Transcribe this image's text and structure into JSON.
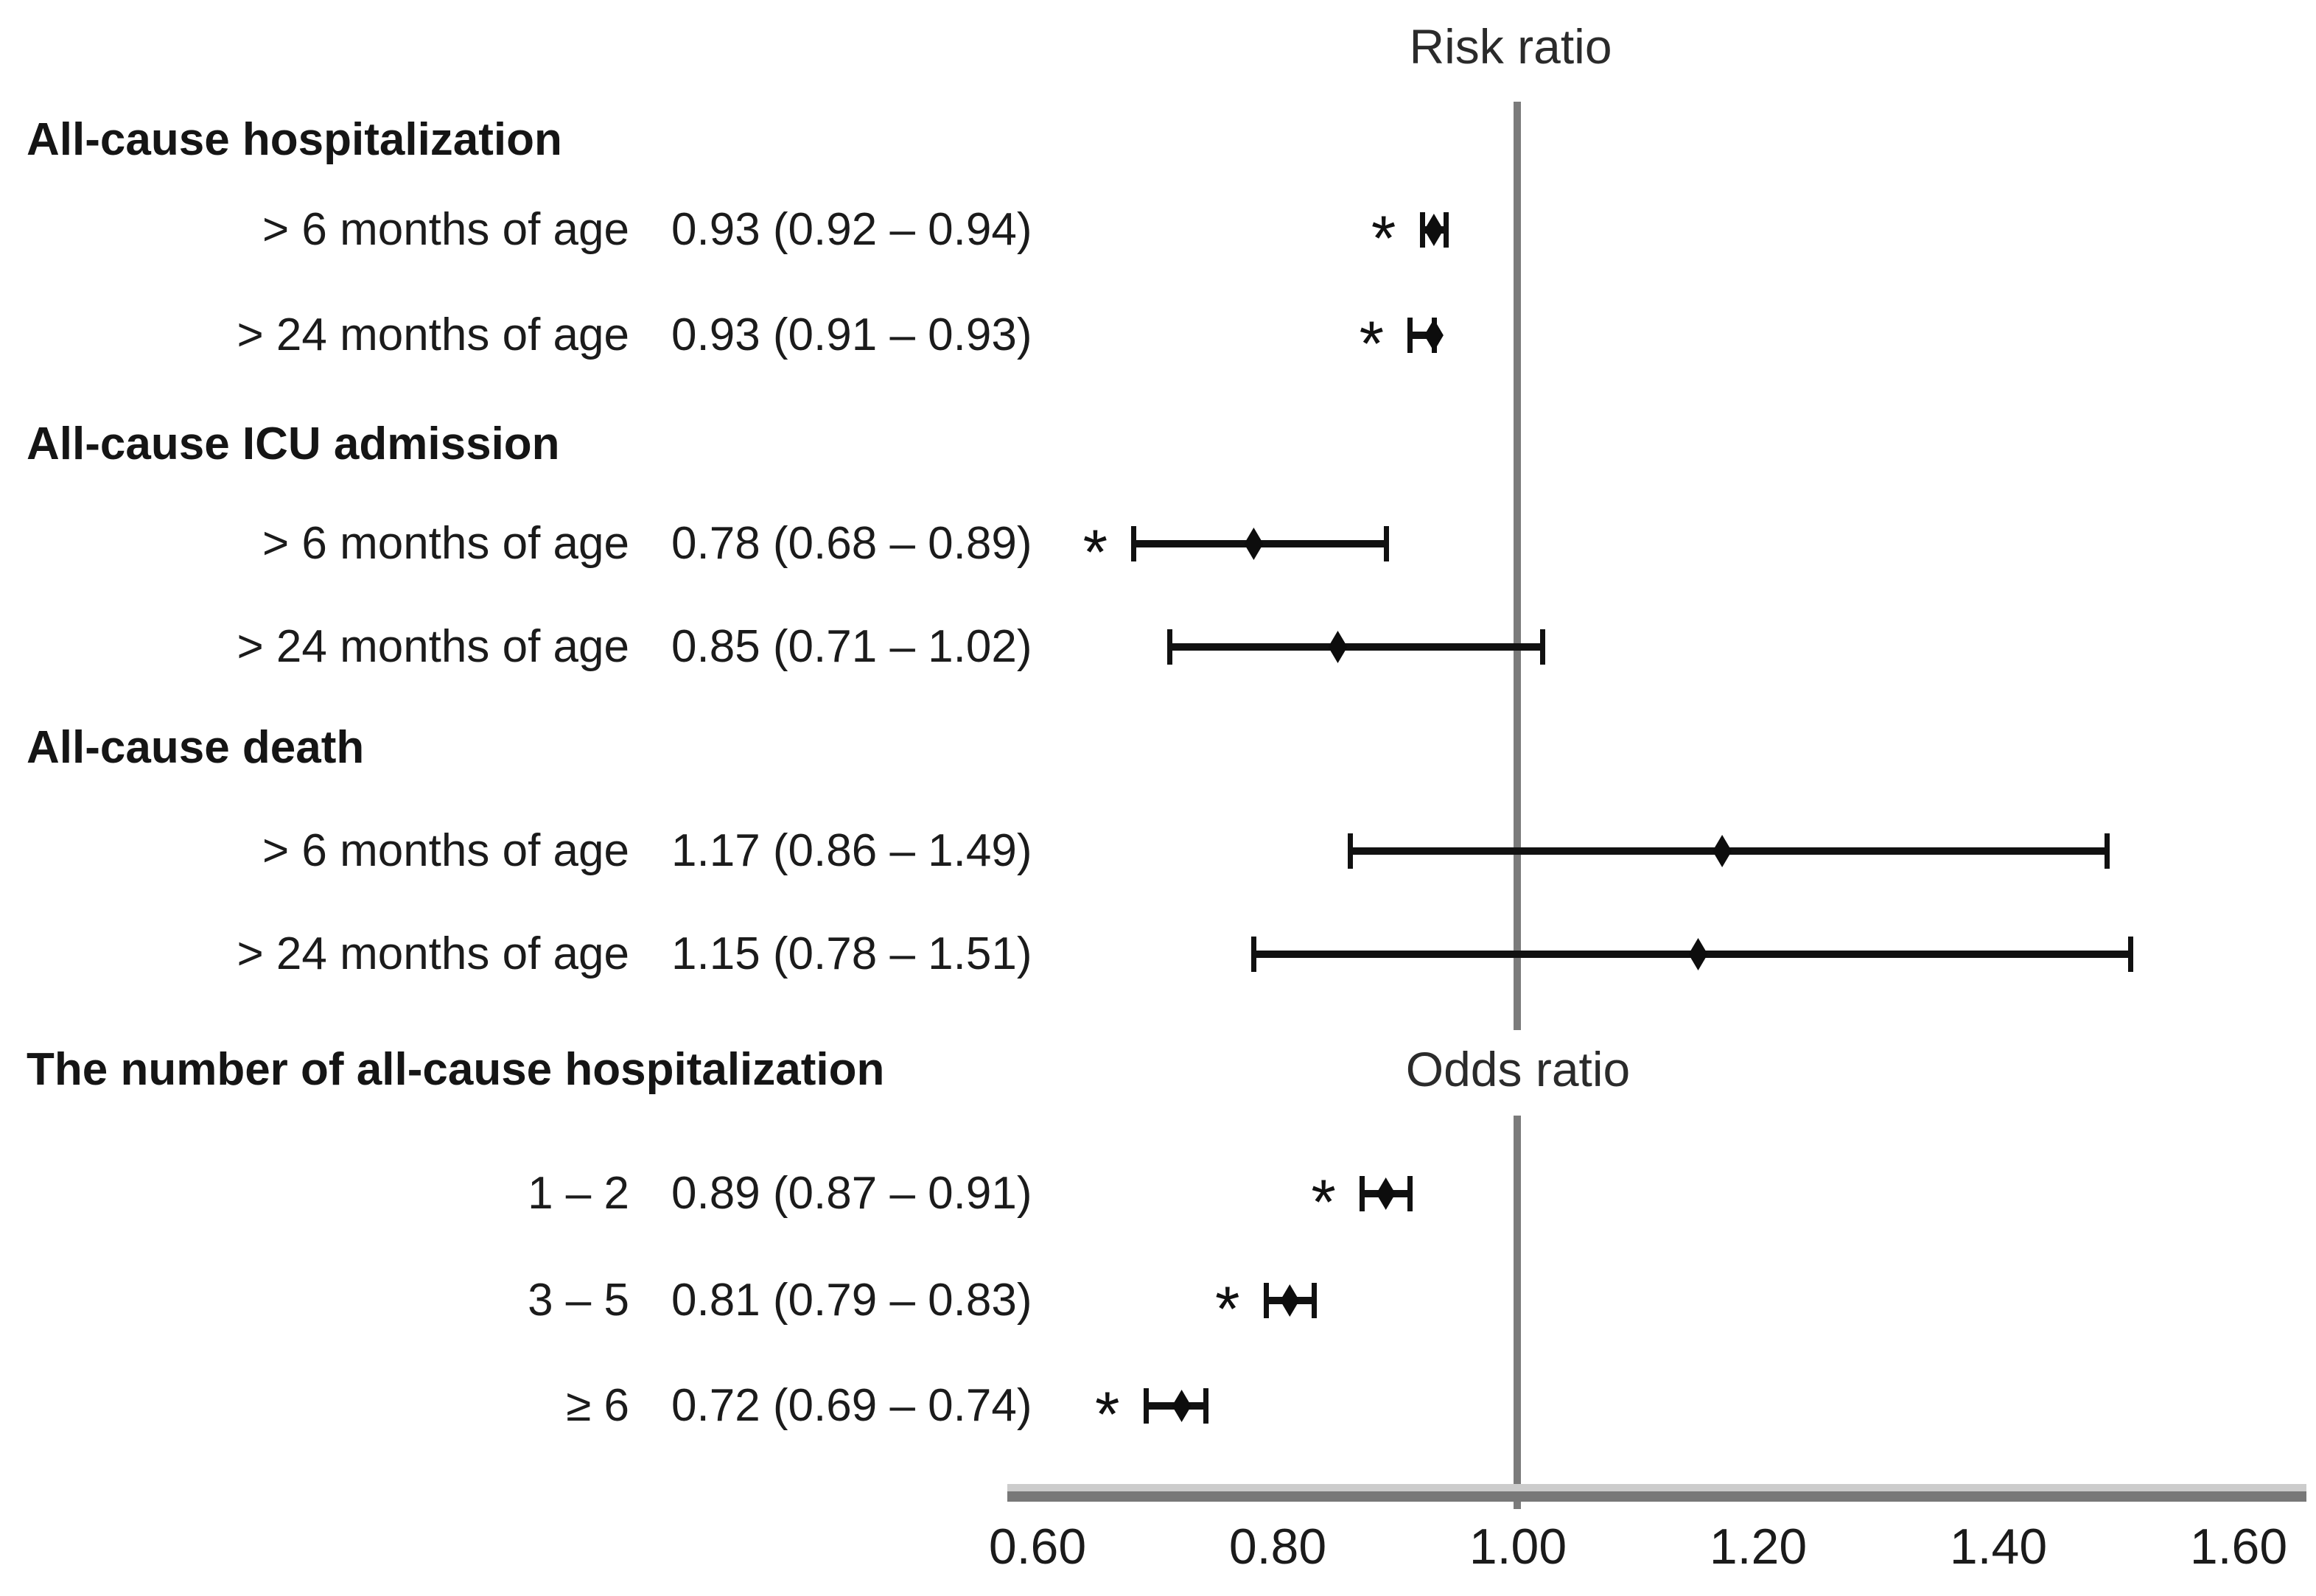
{
  "chart_data": {
    "type": "forest",
    "top_axis_label": "Risk ratio",
    "mid_axis_label": "Odds ratio",
    "significance_marker": "*",
    "x_axis": {
      "tick_labels": [
        "0.60",
        "0.80",
        "1.00",
        "1.20",
        "1.40",
        "1.60"
      ],
      "tick_values": [
        0.6,
        0.8,
        1.0,
        1.2,
        1.4,
        1.6
      ],
      "range_min": 0.6,
      "range_max": 1.6,
      "reference_line_value": 1.0,
      "grid": false
    },
    "groups": [
      {
        "header": "All-cause hospitalization",
        "measure": "Risk ratio",
        "rows": [
          {
            "label": "> 6 months of age",
            "value_text": "0.93 (0.92 – 0.94)",
            "estimate": 0.93,
            "ci_low": 0.92,
            "ci_high": 0.94,
            "significant": true
          },
          {
            "label": "> 24 months of age",
            "value_text": "0.93 (0.91 – 0.93)",
            "estimate": 0.93,
            "ci_low": 0.91,
            "ci_high": 0.93,
            "significant": true
          }
        ]
      },
      {
        "header": "All-cause ICU admission",
        "measure": "Risk ratio",
        "rows": [
          {
            "label": "> 6 months of age",
            "value_text": "0.78 (0.68 – 0.89)",
            "estimate": 0.78,
            "ci_low": 0.68,
            "ci_high": 0.89,
            "significant": true
          },
          {
            "label": "> 24 months of age",
            "value_text": "0.85 (0.71 – 1.02)",
            "estimate": 0.85,
            "ci_low": 0.71,
            "ci_high": 1.02,
            "significant": false
          }
        ]
      },
      {
        "header": "All-cause death",
        "measure": "Risk ratio",
        "rows": [
          {
            "label": "> 6 months of age",
            "value_text": "1.17 (0.86 – 1.49)",
            "estimate": 1.17,
            "ci_low": 0.86,
            "ci_high": 1.49,
            "significant": false
          },
          {
            "label": "> 24 months of age",
            "value_text": "1.15 (0.78 – 1.51)",
            "estimate": 1.15,
            "ci_low": 0.78,
            "ci_high": 1.51,
            "significant": false
          }
        ]
      },
      {
        "header": "The number of all-cause hospitalization",
        "measure": "Odds ratio",
        "rows": [
          {
            "label": "1 – 2",
            "value_text": "0.89 (0.87 – 0.91)",
            "estimate": 0.89,
            "ci_low": 0.87,
            "ci_high": 0.91,
            "significant": true
          },
          {
            "label": "3 – 5",
            "value_text": "0.81 (0.79 – 0.83)",
            "estimate": 0.81,
            "ci_low": 0.79,
            "ci_high": 0.83,
            "significant": true
          },
          {
            "label": "≥ 6",
            "value_text": "0.72 (0.69 – 0.74)",
            "estimate": 0.72,
            "ci_low": 0.69,
            "ci_high": 0.74,
            "significant": true
          }
        ]
      }
    ],
    "colors": {
      "marker": "#111111",
      "text": "#1b1b1b",
      "reference_line": "#7b7b7b",
      "axis_line": "#787878",
      "axis_line_highlight": "#cccccc",
      "background": "#ffffff"
    }
  }
}
